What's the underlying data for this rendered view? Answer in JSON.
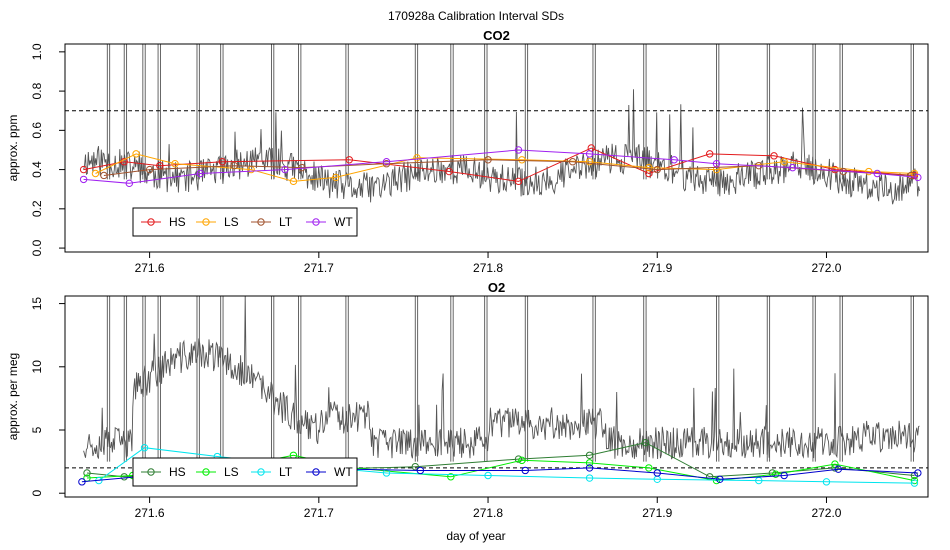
{
  "figure_title": "170928a   Calibration Interval SDs",
  "x_axis_label": "day of year",
  "chart_data": [
    {
      "type": "line",
      "title": "CO2",
      "ylabel": "approx. ppm",
      "xlim": [
        271.55,
        272.06
      ],
      "ylim": [
        -0.02,
        1.04
      ],
      "x_ticks": [
        "271.6",
        "271.7",
        "271.8",
        "271.9",
        "272.0"
      ],
      "y_ticks": [
        "0.0",
        "0.2",
        "0.4",
        "0.6",
        "0.8",
        "1.0"
      ],
      "threshold": 0.7,
      "spikes_x": [
        271.575,
        271.585,
        271.596,
        271.605,
        271.628,
        271.642,
        271.672,
        271.688,
        271.716,
        271.757,
        271.778,
        271.798,
        271.822,
        271.862,
        271.892,
        271.935,
        271.965,
        271.992,
        272.008,
        272.05
      ],
      "legend": [
        "HS",
        "LS",
        "LT",
        "WT"
      ],
      "series": [
        {
          "name": "HS",
          "color": "#e31a1c",
          "x": [
            271.561,
            271.585,
            271.606,
            271.643,
            271.718,
            271.777,
            271.818,
            271.861,
            271.895,
            271.931,
            271.969,
            272.005,
            272.052
          ],
          "y": [
            0.4,
            0.44,
            0.42,
            0.44,
            0.45,
            0.39,
            0.34,
            0.51,
            0.38,
            0.48,
            0.47,
            0.4,
            0.37
          ]
        },
        {
          "name": "LS",
          "color": "#ffa500",
          "x": [
            271.568,
            271.592,
            271.615,
            271.66,
            271.685,
            271.71,
            271.758,
            271.82,
            271.86,
            271.895,
            271.935,
            271.975,
            272.025,
            272.052
          ],
          "y": [
            0.38,
            0.48,
            0.43,
            0.4,
            0.34,
            0.36,
            0.46,
            0.45,
            0.44,
            0.41,
            0.4,
            0.44,
            0.39,
            0.38
          ]
        },
        {
          "name": "LT",
          "color": "#a0522d",
          "x": [
            271.573,
            271.6,
            271.65,
            271.69,
            271.74,
            271.8,
            271.85,
            271.9,
            271.96,
            272.01,
            272.05
          ],
          "y": [
            0.37,
            0.4,
            0.42,
            0.41,
            0.43,
            0.45,
            0.44,
            0.4,
            0.42,
            0.39,
            0.37
          ]
        },
        {
          "name": "WT",
          "color": "#a020f0",
          "x": [
            271.561,
            271.588,
            271.63,
            271.68,
            271.74,
            271.818,
            271.86,
            271.91,
            271.935,
            271.98,
            272.03,
            272.054
          ],
          "y": [
            0.35,
            0.33,
            0.38,
            0.4,
            0.44,
            0.5,
            0.48,
            0.45,
            0.43,
            0.41,
            0.38,
            0.36
          ]
        }
      ]
    },
    {
      "type": "line",
      "title": "O2",
      "ylabel": "approx. per meg",
      "xlabel": "day of year",
      "xlim": [
        271.55,
        272.06
      ],
      "ylim": [
        -0.3,
        15.6
      ],
      "x_ticks": [
        "271.6",
        "271.7",
        "271.8",
        "271.9",
        "272.0"
      ],
      "y_ticks": [
        "0",
        "5",
        "10",
        "15"
      ],
      "threshold": 2.0,
      "spikes_x": [
        271.575,
        271.585,
        271.596,
        271.605,
        271.628,
        271.642,
        271.672,
        271.688,
        271.716,
        271.757,
        271.778,
        271.798,
        271.822,
        271.862,
        271.892,
        271.935,
        271.965,
        271.992,
        272.008,
        272.05
      ],
      "legend": [
        "HS",
        "LS",
        "LT",
        "WT"
      ],
      "series": [
        {
          "name": "HS",
          "color": "#2e7d32",
          "x": [
            271.563,
            271.585,
            271.62,
            271.68,
            271.757,
            271.818,
            271.86,
            271.893,
            271.931,
            271.968,
            272.005,
            272.052
          ],
          "y": [
            1.6,
            1.3,
            1.5,
            1.8,
            2.1,
            2.7,
            3.0,
            4.0,
            1.3,
            1.6,
            2.0,
            1.4
          ]
        },
        {
          "name": "LS",
          "color": "#00ee00",
          "x": [
            271.563,
            271.59,
            271.64,
            271.685,
            271.72,
            271.778,
            271.82,
            271.86,
            271.895,
            271.935,
            271.97,
            272.005,
            272.052
          ],
          "y": [
            1.2,
            1.4,
            1.8,
            3.0,
            2.0,
            1.3,
            2.6,
            2.4,
            2.0,
            1.0,
            1.5,
            2.3,
            1.0
          ]
        },
        {
          "name": "LT",
          "color": "#00e5ee",
          "x": [
            271.57,
            271.597,
            271.64,
            271.69,
            271.74,
            271.8,
            271.86,
            271.9,
            271.96,
            272.0,
            272.052
          ],
          "y": [
            1.0,
            3.6,
            2.9,
            2.2,
            1.6,
            1.4,
            1.2,
            1.1,
            1.0,
            0.9,
            0.8
          ]
        },
        {
          "name": "WT",
          "color": "#0000cd",
          "x": [
            271.56,
            271.593,
            271.65,
            271.72,
            271.76,
            271.822,
            271.86,
            271.9,
            271.937,
            271.975,
            272.007,
            272.054
          ],
          "y": [
            0.9,
            1.3,
            1.6,
            1.9,
            1.8,
            1.8,
            2.0,
            1.6,
            1.1,
            1.4,
            1.9,
            1.6
          ]
        }
      ]
    }
  ]
}
